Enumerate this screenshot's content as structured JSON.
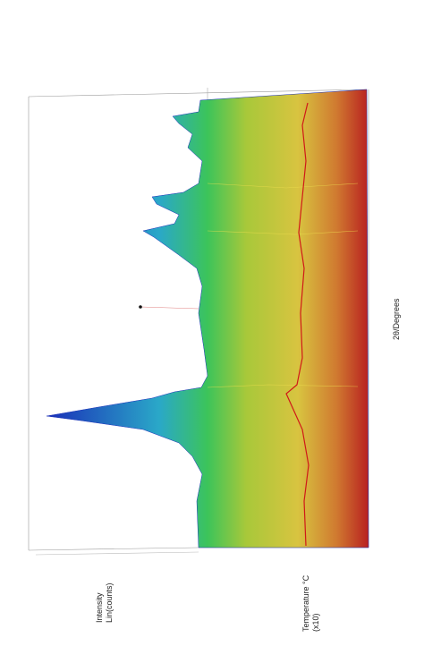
{
  "chart_data": {
    "type": "surface3d",
    "z_label_lines": [
      "Intensity",
      "Lin(counts)"
    ],
    "y_label_lines": [
      "Temperature °C",
      "(x10)"
    ],
    "x_label": "2θ/Degrees"
  }
}
